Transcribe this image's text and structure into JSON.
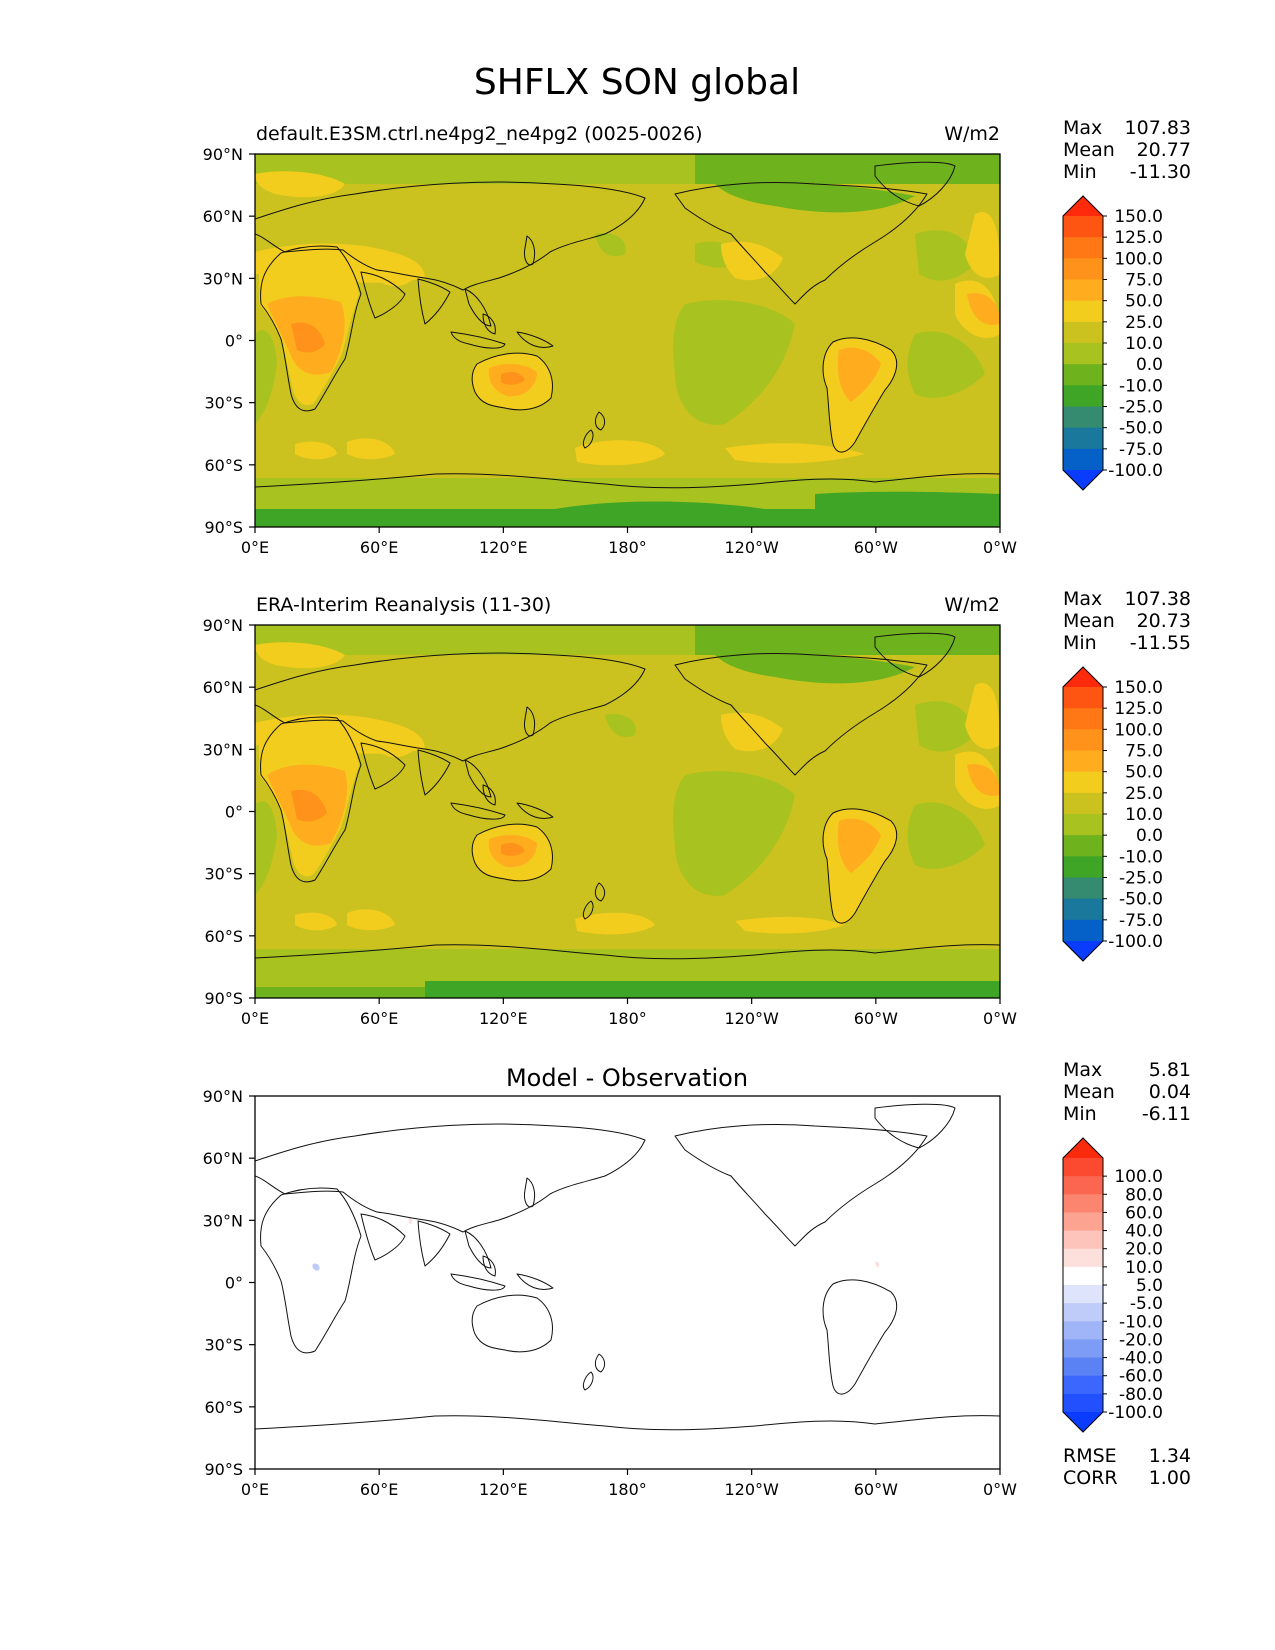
{
  "figure": {
    "title": "SHFLX SON global"
  },
  "axes": {
    "lat_ticks": [
      "90°N",
      "60°N",
      "30°N",
      "0°",
      "30°S",
      "60°S",
      "90°S"
    ],
    "lon_ticks": [
      "0°E",
      "60°E",
      "120°E",
      "180°",
      "120°W",
      "60°W",
      "0°W"
    ]
  },
  "panels": [
    {
      "id": "model",
      "title_left": "default.E3SM.ctrl.ne4pg2_ne4pg2 (0025-0026)",
      "title_center": "",
      "units": "W/m2",
      "stats": [
        {
          "label": "Max",
          "value": "107.83"
        },
        {
          "label": "Mean",
          "value": "20.77"
        },
        {
          "label": "Min",
          "value": "-11.30"
        }
      ],
      "colorbar": {
        "colors": [
          "#0a3cff",
          "#0561c8",
          "#19789b",
          "#348b6f",
          "#3fa527",
          "#6eb21d",
          "#a8c21f",
          "#cbc21f",
          "#f3cd1e",
          "#ffac1e",
          "#ff921a",
          "#ff7815",
          "#ff5512",
          "#ff2a0c"
        ],
        "labels": [
          "-100.0",
          "-75.0",
          "-50.0",
          "-25.0",
          "-10.0",
          "0.0",
          "10.0",
          "25.0",
          "50.0",
          "75.0",
          "100.0",
          "125.0",
          "150.0"
        ]
      },
      "footer_stats": []
    },
    {
      "id": "obs",
      "title_left": "ERA-Interim Reanalysis (11-30)",
      "title_center": "",
      "units": "W/m2",
      "stats": [
        {
          "label": "Max",
          "value": "107.38"
        },
        {
          "label": "Mean",
          "value": "20.73"
        },
        {
          "label": "Min",
          "value": "-11.55"
        }
      ],
      "colorbar": {
        "colors": [
          "#0a3cff",
          "#0561c8",
          "#19789b",
          "#348b6f",
          "#3fa527",
          "#6eb21d",
          "#a8c21f",
          "#cbc21f",
          "#f3cd1e",
          "#ffac1e",
          "#ff921a",
          "#ff7815",
          "#ff5512",
          "#ff2a0c"
        ],
        "labels": [
          "-100.0",
          "-75.0",
          "-50.0",
          "-25.0",
          "-10.0",
          "0.0",
          "10.0",
          "25.0",
          "50.0",
          "75.0",
          "100.0",
          "125.0",
          "150.0"
        ]
      },
      "footer_stats": []
    },
    {
      "id": "diff",
      "title_left": "",
      "title_center": "Model - Observation",
      "units": "",
      "stats": [
        {
          "label": "Max",
          "value": "5.81"
        },
        {
          "label": "Mean",
          "value": "0.04"
        },
        {
          "label": "Min",
          "value": "-6.11"
        }
      ],
      "colorbar": {
        "colors": [
          "#0a3cff",
          "#2250ff",
          "#3c67ff",
          "#5a82f5",
          "#7d9cf5",
          "#9fb5f7",
          "#bfcbf9",
          "#dde4fb",
          "#ffffff",
          "#fde0dc",
          "#fcc4bb",
          "#fca392",
          "#fc8570",
          "#fb6650",
          "#fb4a30",
          "#fa2a0c"
        ],
        "labels": [
          "-100.0",
          "-80.0",
          "-60.0",
          "-40.0",
          "-20.0",
          "-10.0",
          "-5.0",
          "5.0",
          "10.0",
          "20.0",
          "40.0",
          "60.0",
          "80.0",
          "100.0"
        ]
      },
      "footer_stats": [
        {
          "label": "RMSE",
          "value": "1.34"
        },
        {
          "label": "CORR",
          "value": "1.00"
        }
      ]
    }
  ],
  "map_data": {
    "projection": "PlateCarree, central longitude 180",
    "lon_range": [
      0,
      360
    ],
    "lat_range": [
      -90,
      90
    ],
    "variable": "SHFLX",
    "season": "SON"
  }
}
